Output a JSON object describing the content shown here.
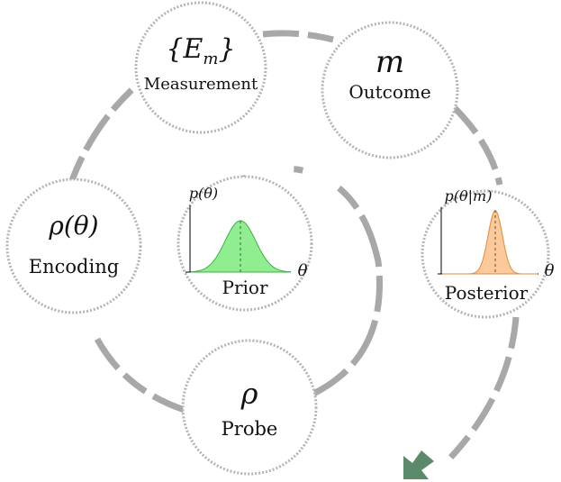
{
  "nodes": {
    "measurement": {
      "symbol": "{E",
      "symbol_sub": "m",
      "symbol_close": "}",
      "label": "Measurement"
    },
    "outcome": {
      "symbol": "m",
      "label": "Outcome"
    },
    "encoding": {
      "symbol": "ρ(θ)",
      "label": "Encoding"
    },
    "probe": {
      "symbol": "ρ",
      "label": "Probe"
    }
  },
  "plots": {
    "prior": {
      "ylabel": "p(θ)",
      "xlabel": "θ",
      "label": "Prior",
      "fill": "#90ee90",
      "stroke": "#3cb043"
    },
    "posterior": {
      "ylabel": "p(θ|m)",
      "xlabel": "θ",
      "label": "Posterior",
      "fill": "#fbc99a",
      "stroke": "#e08a3a"
    }
  },
  "colors": {
    "arrow": "#5a8a6a",
    "arc": "#a8a8a8"
  }
}
